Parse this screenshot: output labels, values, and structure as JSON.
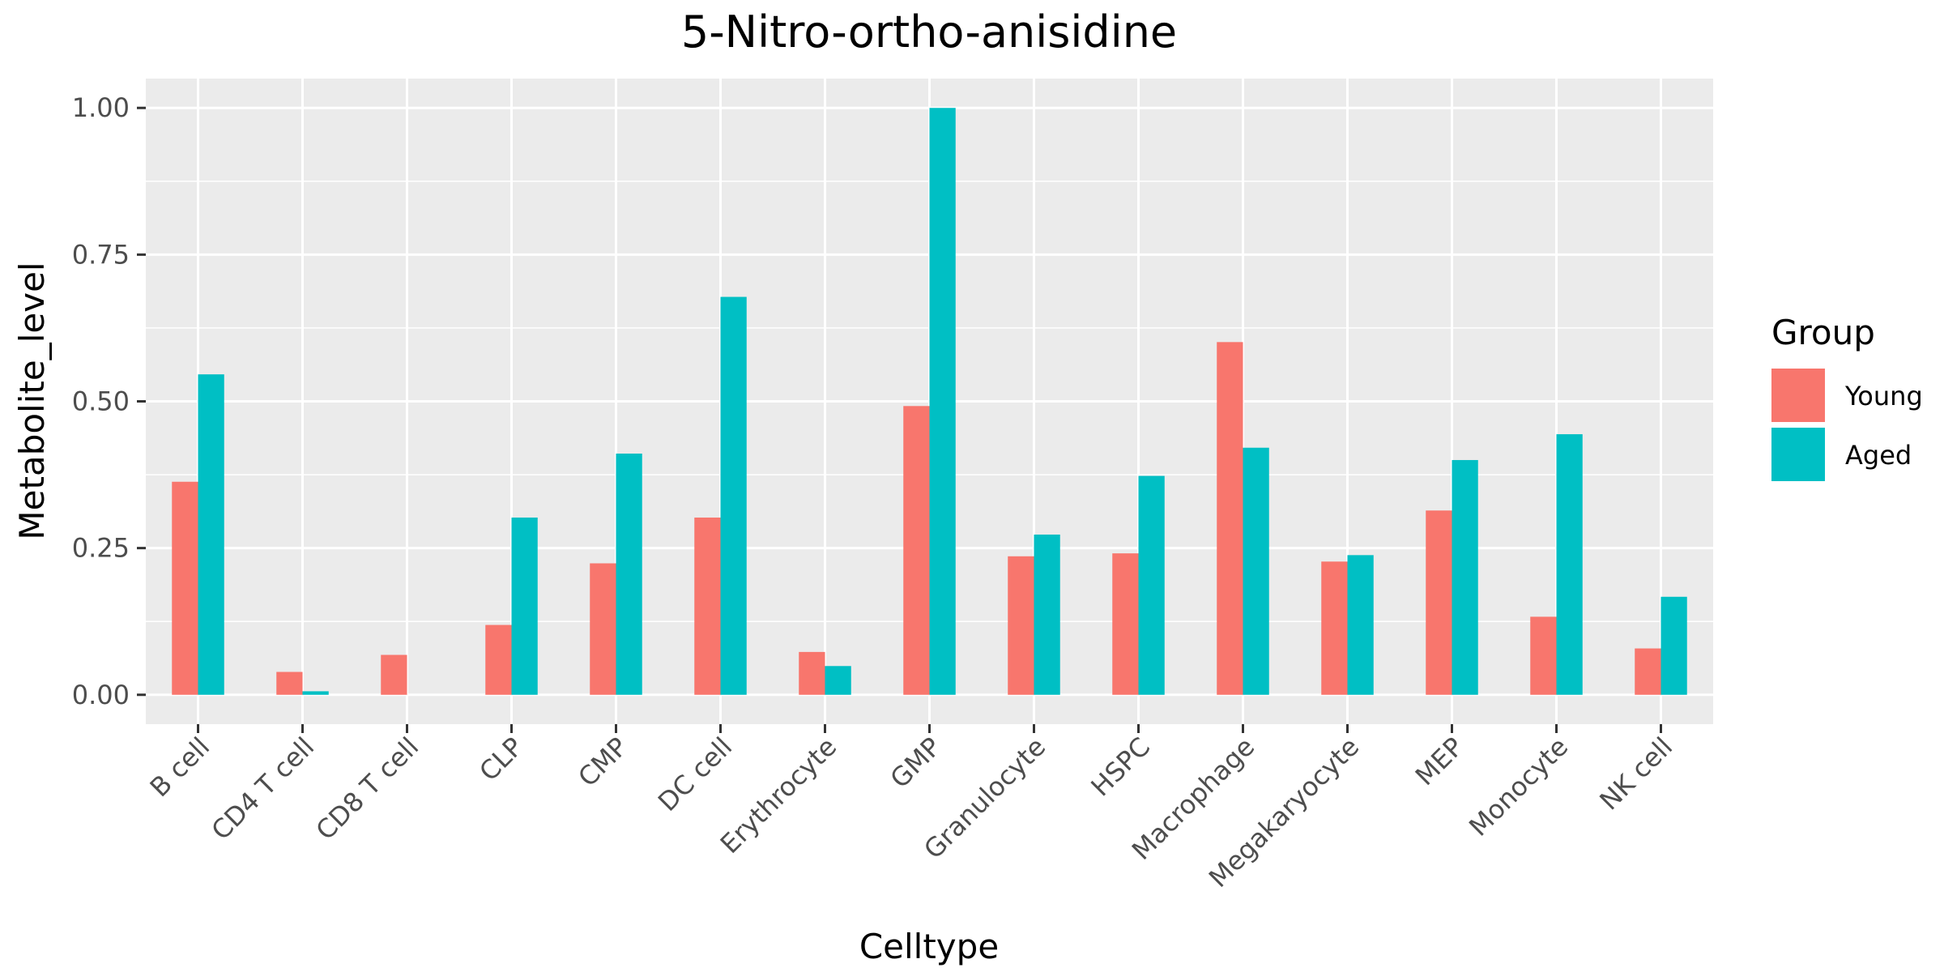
{
  "chart_data": {
    "type": "bar",
    "title": "5-Nitro-ortho-anisidine",
    "xlabel": "Celltype",
    "ylabel": "Metabolite_level",
    "categories": [
      "B cell",
      "CD4 T cell",
      "CD8 T cell",
      "CLP",
      "CMP",
      "DC cell",
      "Erythrocyte",
      "GMP",
      "Granulocyte",
      "HSPC",
      "Macrophage",
      "Megakaryocyte",
      "MEP",
      "Monocyte",
      "NK cell"
    ],
    "series": [
      {
        "name": "Young",
        "color": "#F8766D",
        "values": [
          0.363,
          0.039,
          0.068,
          0.119,
          0.224,
          0.302,
          0.073,
          0.492,
          0.236,
          0.241,
          0.601,
          0.227,
          0.314,
          0.133,
          0.079
        ]
      },
      {
        "name": "Aged",
        "color": "#00BFC4",
        "values": [
          0.546,
          0.006,
          0.0,
          0.302,
          0.411,
          0.678,
          0.049,
          1.0,
          0.273,
          0.373,
          0.421,
          0.238,
          0.4,
          0.444,
          0.167
        ]
      }
    ],
    "ylim": [
      -0.05,
      1.05
    ],
    "yticks": [
      "0.00",
      "0.25",
      "0.50",
      "0.75",
      "1.00"
    ],
    "ytick_values": [
      0,
      0.25,
      0.5,
      0.75,
      1.0
    ],
    "legend_title": "Group",
    "legend_position": "right",
    "grid": true
  }
}
